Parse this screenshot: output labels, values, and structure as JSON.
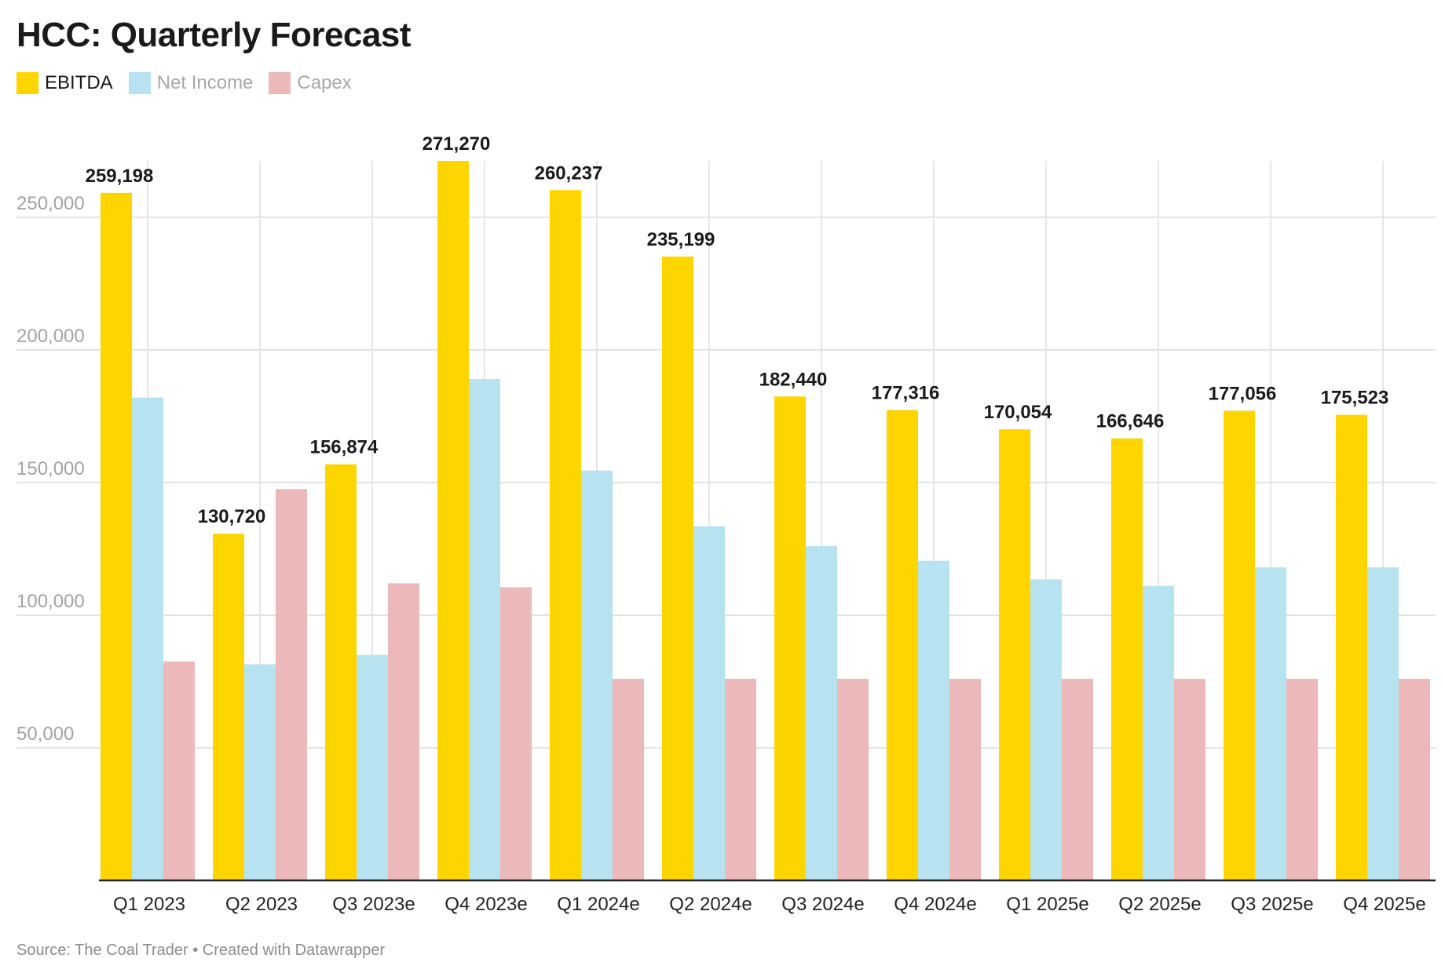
{
  "header": {
    "title": "HCC: Quarterly Forecast"
  },
  "legend": [
    {
      "name": "EBITDA",
      "color": "#ffd500"
    },
    {
      "name": "Net Income",
      "color": "#b7e2ef"
    },
    {
      "name": "Capex",
      "color": "#ecb8b9"
    }
  ],
  "footer": {
    "source": "Source: The Coal Trader • Created with Datawrapper"
  },
  "chart_data": {
    "type": "bar",
    "title": "HCC: Quarterly Forecast",
    "xlabel": "",
    "ylabel": "",
    "ylim": [
      0,
      271270
    ],
    "yticks": [
      50000,
      100000,
      150000,
      200000,
      250000
    ],
    "ytick_labels": [
      "50,000",
      "100,000",
      "150,000",
      "200,000",
      "250,000"
    ],
    "grid": true,
    "legend_position": "top-left",
    "categories": [
      "Q1 2023",
      "Q2 2023",
      "Q3 2023e",
      "Q4 2023e",
      "Q1 2024e",
      "Q2 2024e",
      "Q3 2024e",
      "Q4 2024e",
      "Q1 2025e",
      "Q2 2025e",
      "Q3 2025e",
      "Q4 2025e"
    ],
    "series": [
      {
        "name": "EBITDA",
        "color": "#ffd500",
        "values": [
          259198,
          130720,
          156874,
          271270,
          260237,
          235199,
          182440,
          177316,
          170054,
          166646,
          177056,
          175523
        ]
      },
      {
        "name": "Net Income",
        "color": "#b7e2ef",
        "values": [
          182000,
          81500,
          85000,
          189000,
          154500,
          133500,
          126000,
          120500,
          113500,
          111000,
          118000,
          118000
        ]
      },
      {
        "name": "Capex",
        "color": "#ecb8b9",
        "values": [
          82500,
          147500,
          112000,
          110500,
          76000,
          76000,
          76000,
          76000,
          76000,
          76000,
          76000,
          76000
        ]
      }
    ],
    "data_labels": {
      "series": "EBITDA",
      "labels": [
        "259,198",
        "130,720",
        "156,874",
        "271,270",
        "260,237",
        "235,199",
        "182,440",
        "177,316",
        "170,054",
        "166,646",
        "177,056",
        "175,523"
      ]
    }
  }
}
